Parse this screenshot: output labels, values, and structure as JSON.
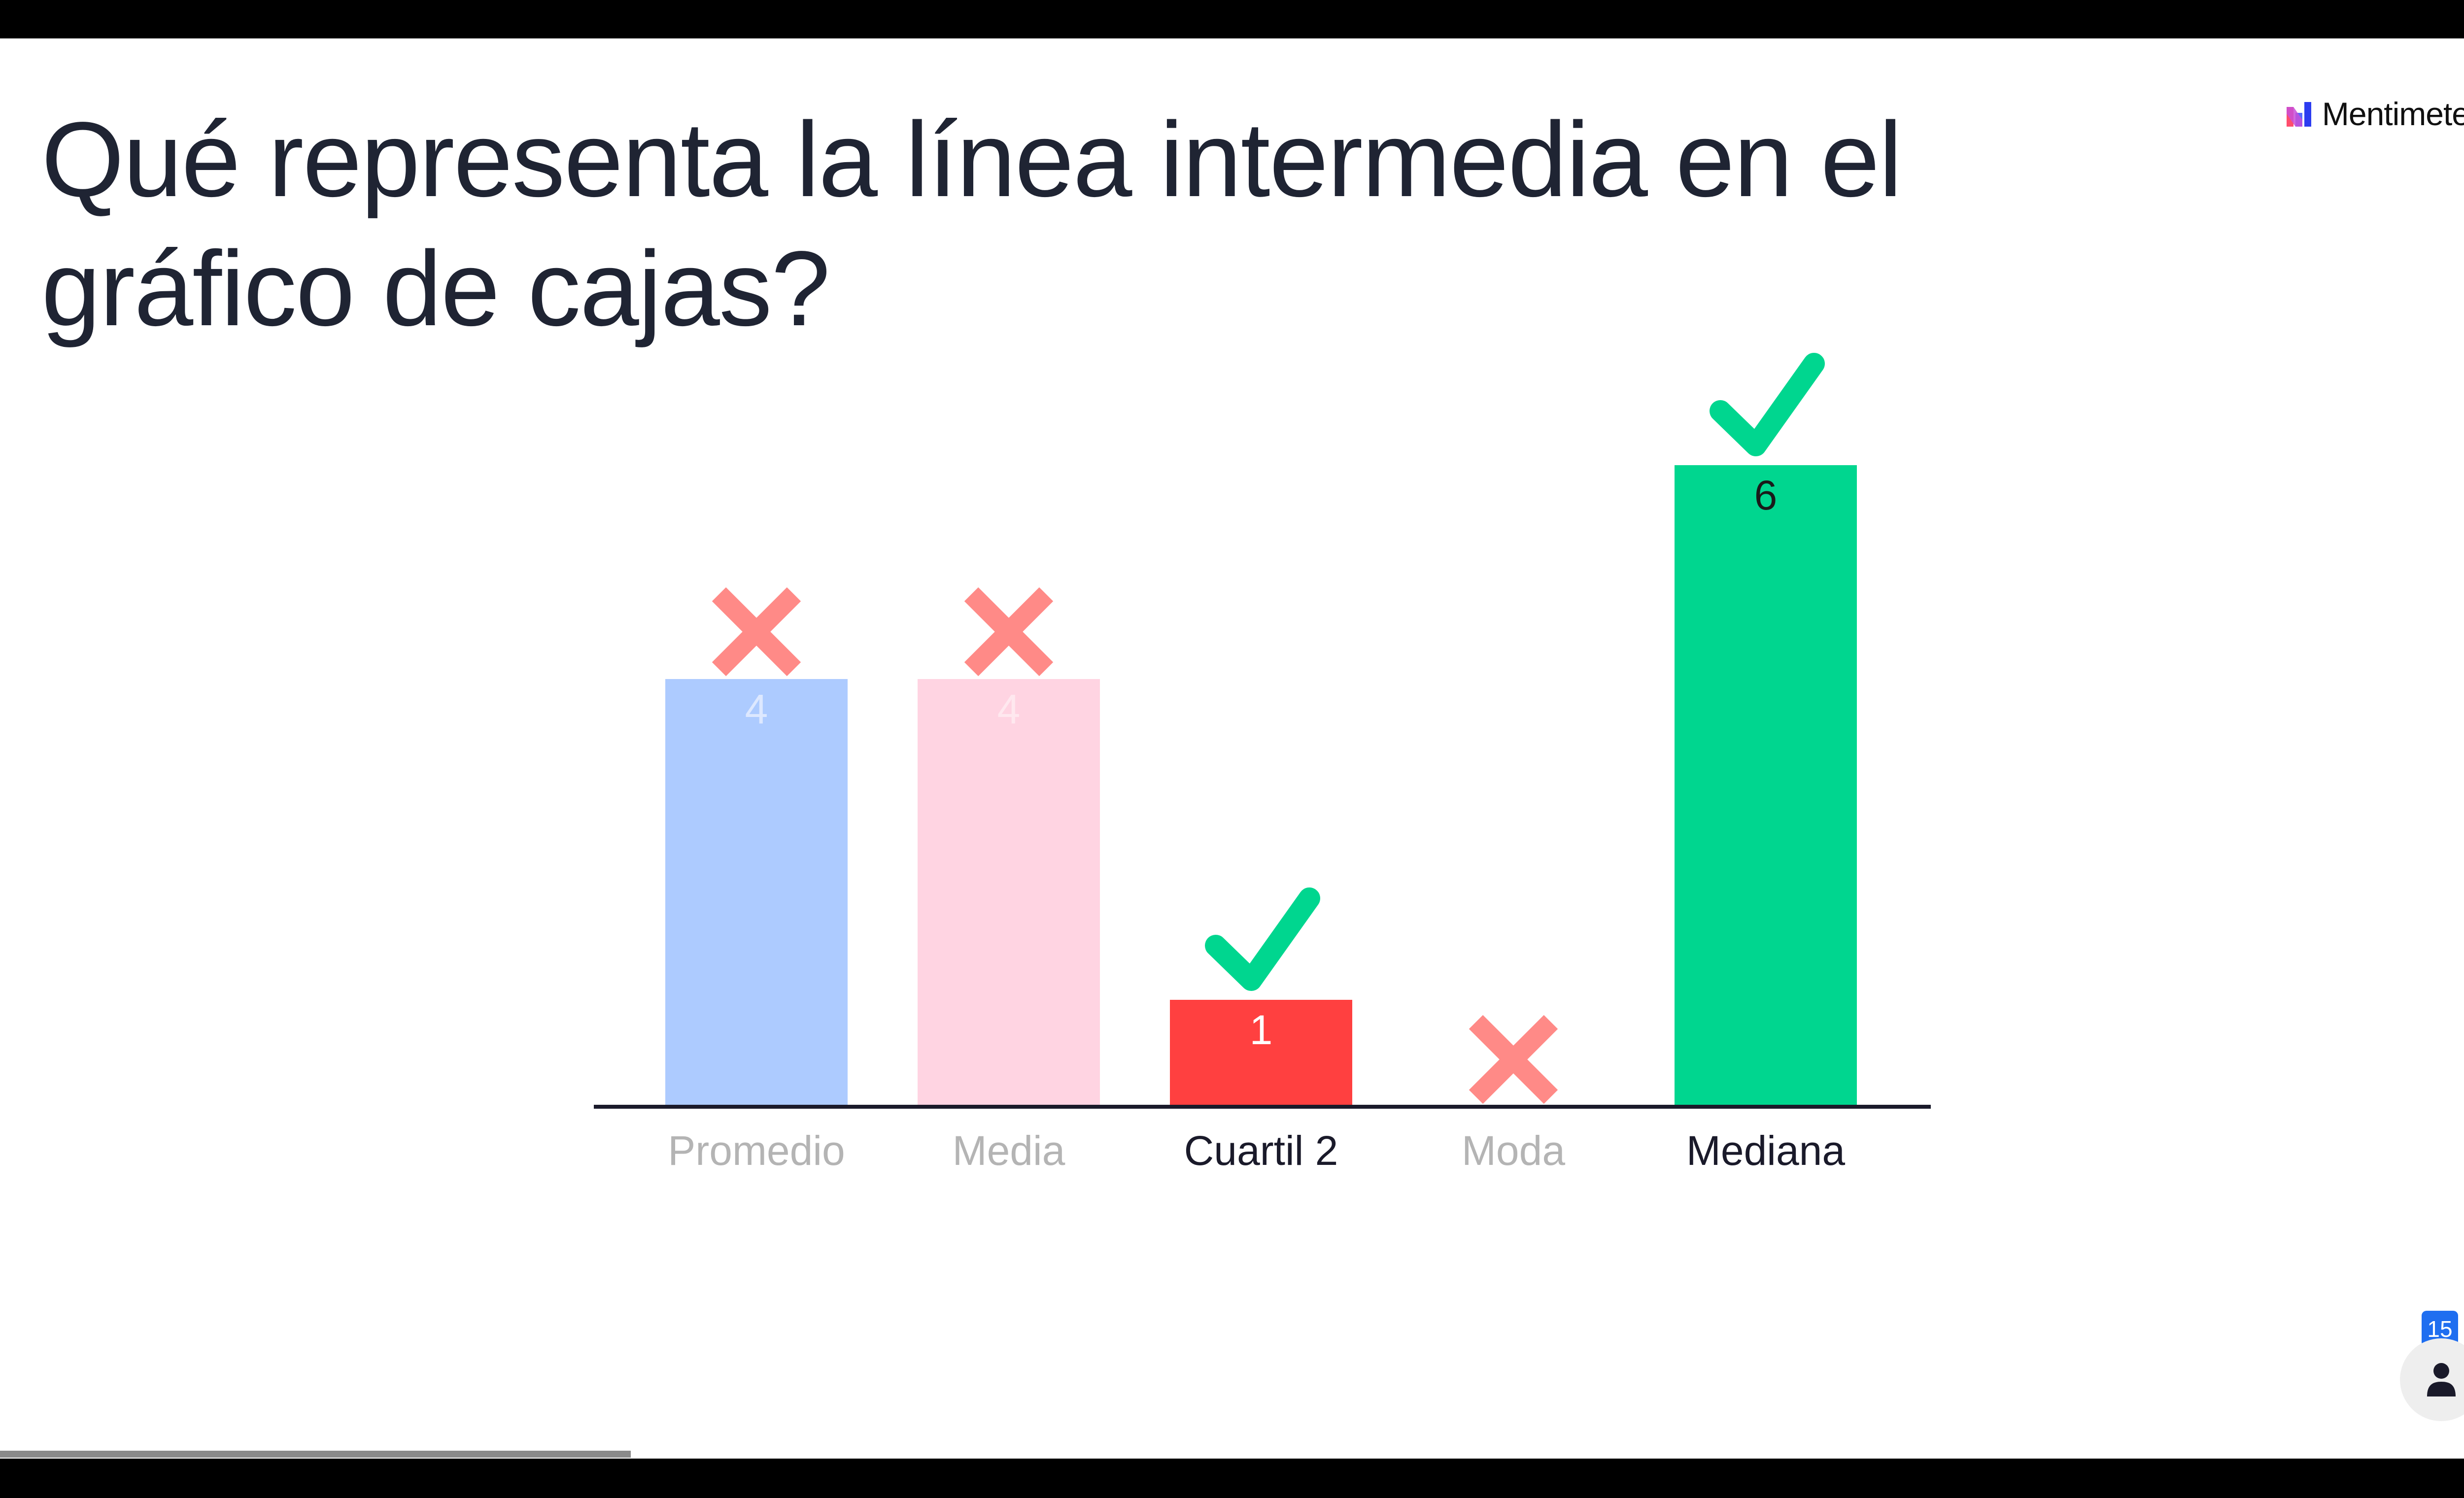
{
  "question": {
    "title": "Qué representa la línea intermedia en el gráfico de cajas?"
  },
  "brand": {
    "name": "Mentimeter",
    "logo_icon": "mentimeter-logo-icon"
  },
  "audience": {
    "count": "15",
    "icon": "person-icon"
  },
  "progress": {
    "fraction": 0.25
  },
  "colors": {
    "title": "#1f2433",
    "correct": "#00d68f",
    "incorrect_mark": "#ff8a87",
    "axis": "#1a1a2a",
    "faded_label": "#b4b4b4",
    "active_label": "#1a1a2a"
  },
  "chart_data": {
    "type": "bar",
    "categories": [
      "Promedio",
      "Media",
      "Cuartil 2",
      "Moda",
      "Mediana"
    ],
    "values": [
      4,
      4,
      1,
      0,
      6
    ],
    "value_labels": [
      "4",
      "4",
      "1",
      "",
      "6"
    ],
    "correct": [
      false,
      false,
      true,
      false,
      true
    ],
    "bar_colors": [
      "#adcbff",
      "#ffd4e2",
      "#ff4040",
      "#dddddd",
      "#00d68f"
    ],
    "value_label_colors": [
      "#dde8ff",
      "#ffe8ef",
      "#ffffff",
      "#ffffff",
      "#1a1a1a"
    ],
    "category_label_colors": [
      "#b4b4b4",
      "#b4b4b4",
      "#1a1a2a",
      "#b4b4b4",
      "#1a1a2a"
    ],
    "ylim": [
      0,
      6
    ],
    "grid": false
  }
}
